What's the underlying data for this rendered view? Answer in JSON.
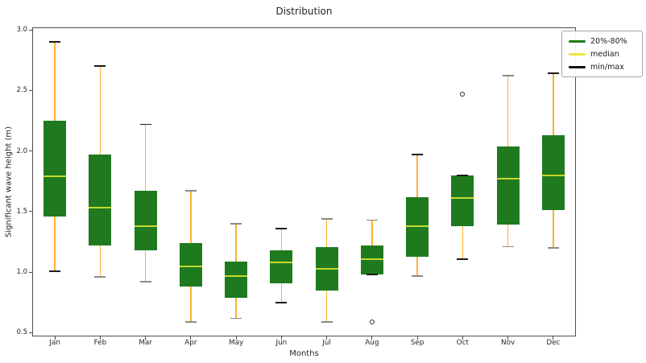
{
  "figure": {
    "title": "Distribution",
    "xlabel": "Months",
    "ylabel": "Significant wave height (m)"
  },
  "legend": {
    "items": [
      {
        "label": "20%-80%",
        "color": "#1f7a1f"
      },
      {
        "label": "median",
        "color": "#e9e83c"
      },
      {
        "label": "min/max",
        "color": "#141414"
      }
    ]
  },
  "palette": {
    "box_fill": "#1f7a1f",
    "box_median": "#c6d82b",
    "whisker": "#ffb12f",
    "cap_dark": "#1c1c1c",
    "cap_gray": "#8a8a8a",
    "spine": "#4d4d4d",
    "text": "#262626"
  },
  "chart_data": {
    "type": "boxplot",
    "title": "Distribution",
    "xlabel": "Months",
    "ylabel": "Significant wave height (m)",
    "ylim": [
      0.47,
      3.02
    ],
    "yticks": [
      0.5,
      1.0,
      1.5,
      2.0,
      2.5,
      3.0
    ],
    "grid": false,
    "legend_position": "upper right",
    "categories": [
      "Jan",
      "Feb",
      "Mar",
      "Apr",
      "May",
      "Jun",
      "Jul",
      "Aug",
      "Sep",
      "Oct",
      "Nov",
      "Dec"
    ],
    "series": [
      {
        "month": "Jan",
        "whisker_low": 1.01,
        "p20": 1.46,
        "median": 1.79,
        "p80": 2.25,
        "whisker_high": 2.9,
        "outliers": [],
        "cap_top": "dark",
        "cap_bottom": "dark"
      },
      {
        "month": "Feb",
        "whisker_low": 0.96,
        "p20": 1.22,
        "median": 1.53,
        "p80": 1.97,
        "whisker_high": 2.7,
        "outliers": [],
        "cap_top": "dark",
        "cap_bottom": "gray"
      },
      {
        "month": "Mar",
        "whisker_low": 0.92,
        "p20": 1.18,
        "median": 1.38,
        "p80": 1.67,
        "whisker_high": 2.22,
        "outliers": [],
        "cap_top": "dark",
        "cap_bottom": "gray"
      },
      {
        "month": "Apr",
        "whisker_low": 0.59,
        "p20": 0.88,
        "median": 1.05,
        "p80": 1.24,
        "whisker_high": 1.67,
        "outliers": [],
        "cap_top": "gray",
        "cap_bottom": "gray"
      },
      {
        "month": "May",
        "whisker_low": 0.62,
        "p20": 0.79,
        "median": 0.97,
        "p80": 1.09,
        "whisker_high": 1.4,
        "outliers": [],
        "cap_top": "gray",
        "cap_bottom": "gray"
      },
      {
        "month": "Jun",
        "whisker_low": 0.75,
        "p20": 0.91,
        "median": 1.08,
        "p80": 1.18,
        "whisker_high": 1.36,
        "outliers": [],
        "cap_top": "dark",
        "cap_bottom": "dark"
      },
      {
        "month": "Jul",
        "whisker_low": 0.59,
        "p20": 0.85,
        "median": 1.03,
        "p80": 1.21,
        "whisker_high": 1.44,
        "outliers": [],
        "cap_top": "gray",
        "cap_bottom": "gray"
      },
      {
        "month": "Aug",
        "whisker_low": 0.98,
        "p20": 0.98,
        "median": 1.11,
        "p80": 1.22,
        "whisker_high": 1.43,
        "outliers": [
          0.59
        ],
        "cap_top": "gray",
        "cap_bottom": "dark"
      },
      {
        "month": "Sep",
        "whisker_low": 0.97,
        "p20": 1.13,
        "median": 1.38,
        "p80": 1.62,
        "whisker_high": 1.97,
        "outliers": [],
        "cap_top": "dark",
        "cap_bottom": "gray"
      },
      {
        "month": "Oct",
        "whisker_low": 1.11,
        "p20": 1.38,
        "median": 1.61,
        "p80": 1.8,
        "whisker_high": 1.8,
        "outliers": [
          2.47
        ],
        "cap_top": "dark",
        "cap_bottom": "dark"
      },
      {
        "month": "Nov",
        "whisker_low": 1.21,
        "p20": 1.39,
        "median": 1.77,
        "p80": 2.04,
        "whisker_high": 2.62,
        "outliers": [],
        "cap_top": "gray",
        "cap_bottom": "gray"
      },
      {
        "month": "Dec",
        "whisker_low": 1.2,
        "p20": 1.51,
        "median": 1.8,
        "p80": 2.13,
        "whisker_high": 2.64,
        "outliers": [],
        "cap_top": "dark",
        "cap_bottom": "gray"
      }
    ]
  }
}
